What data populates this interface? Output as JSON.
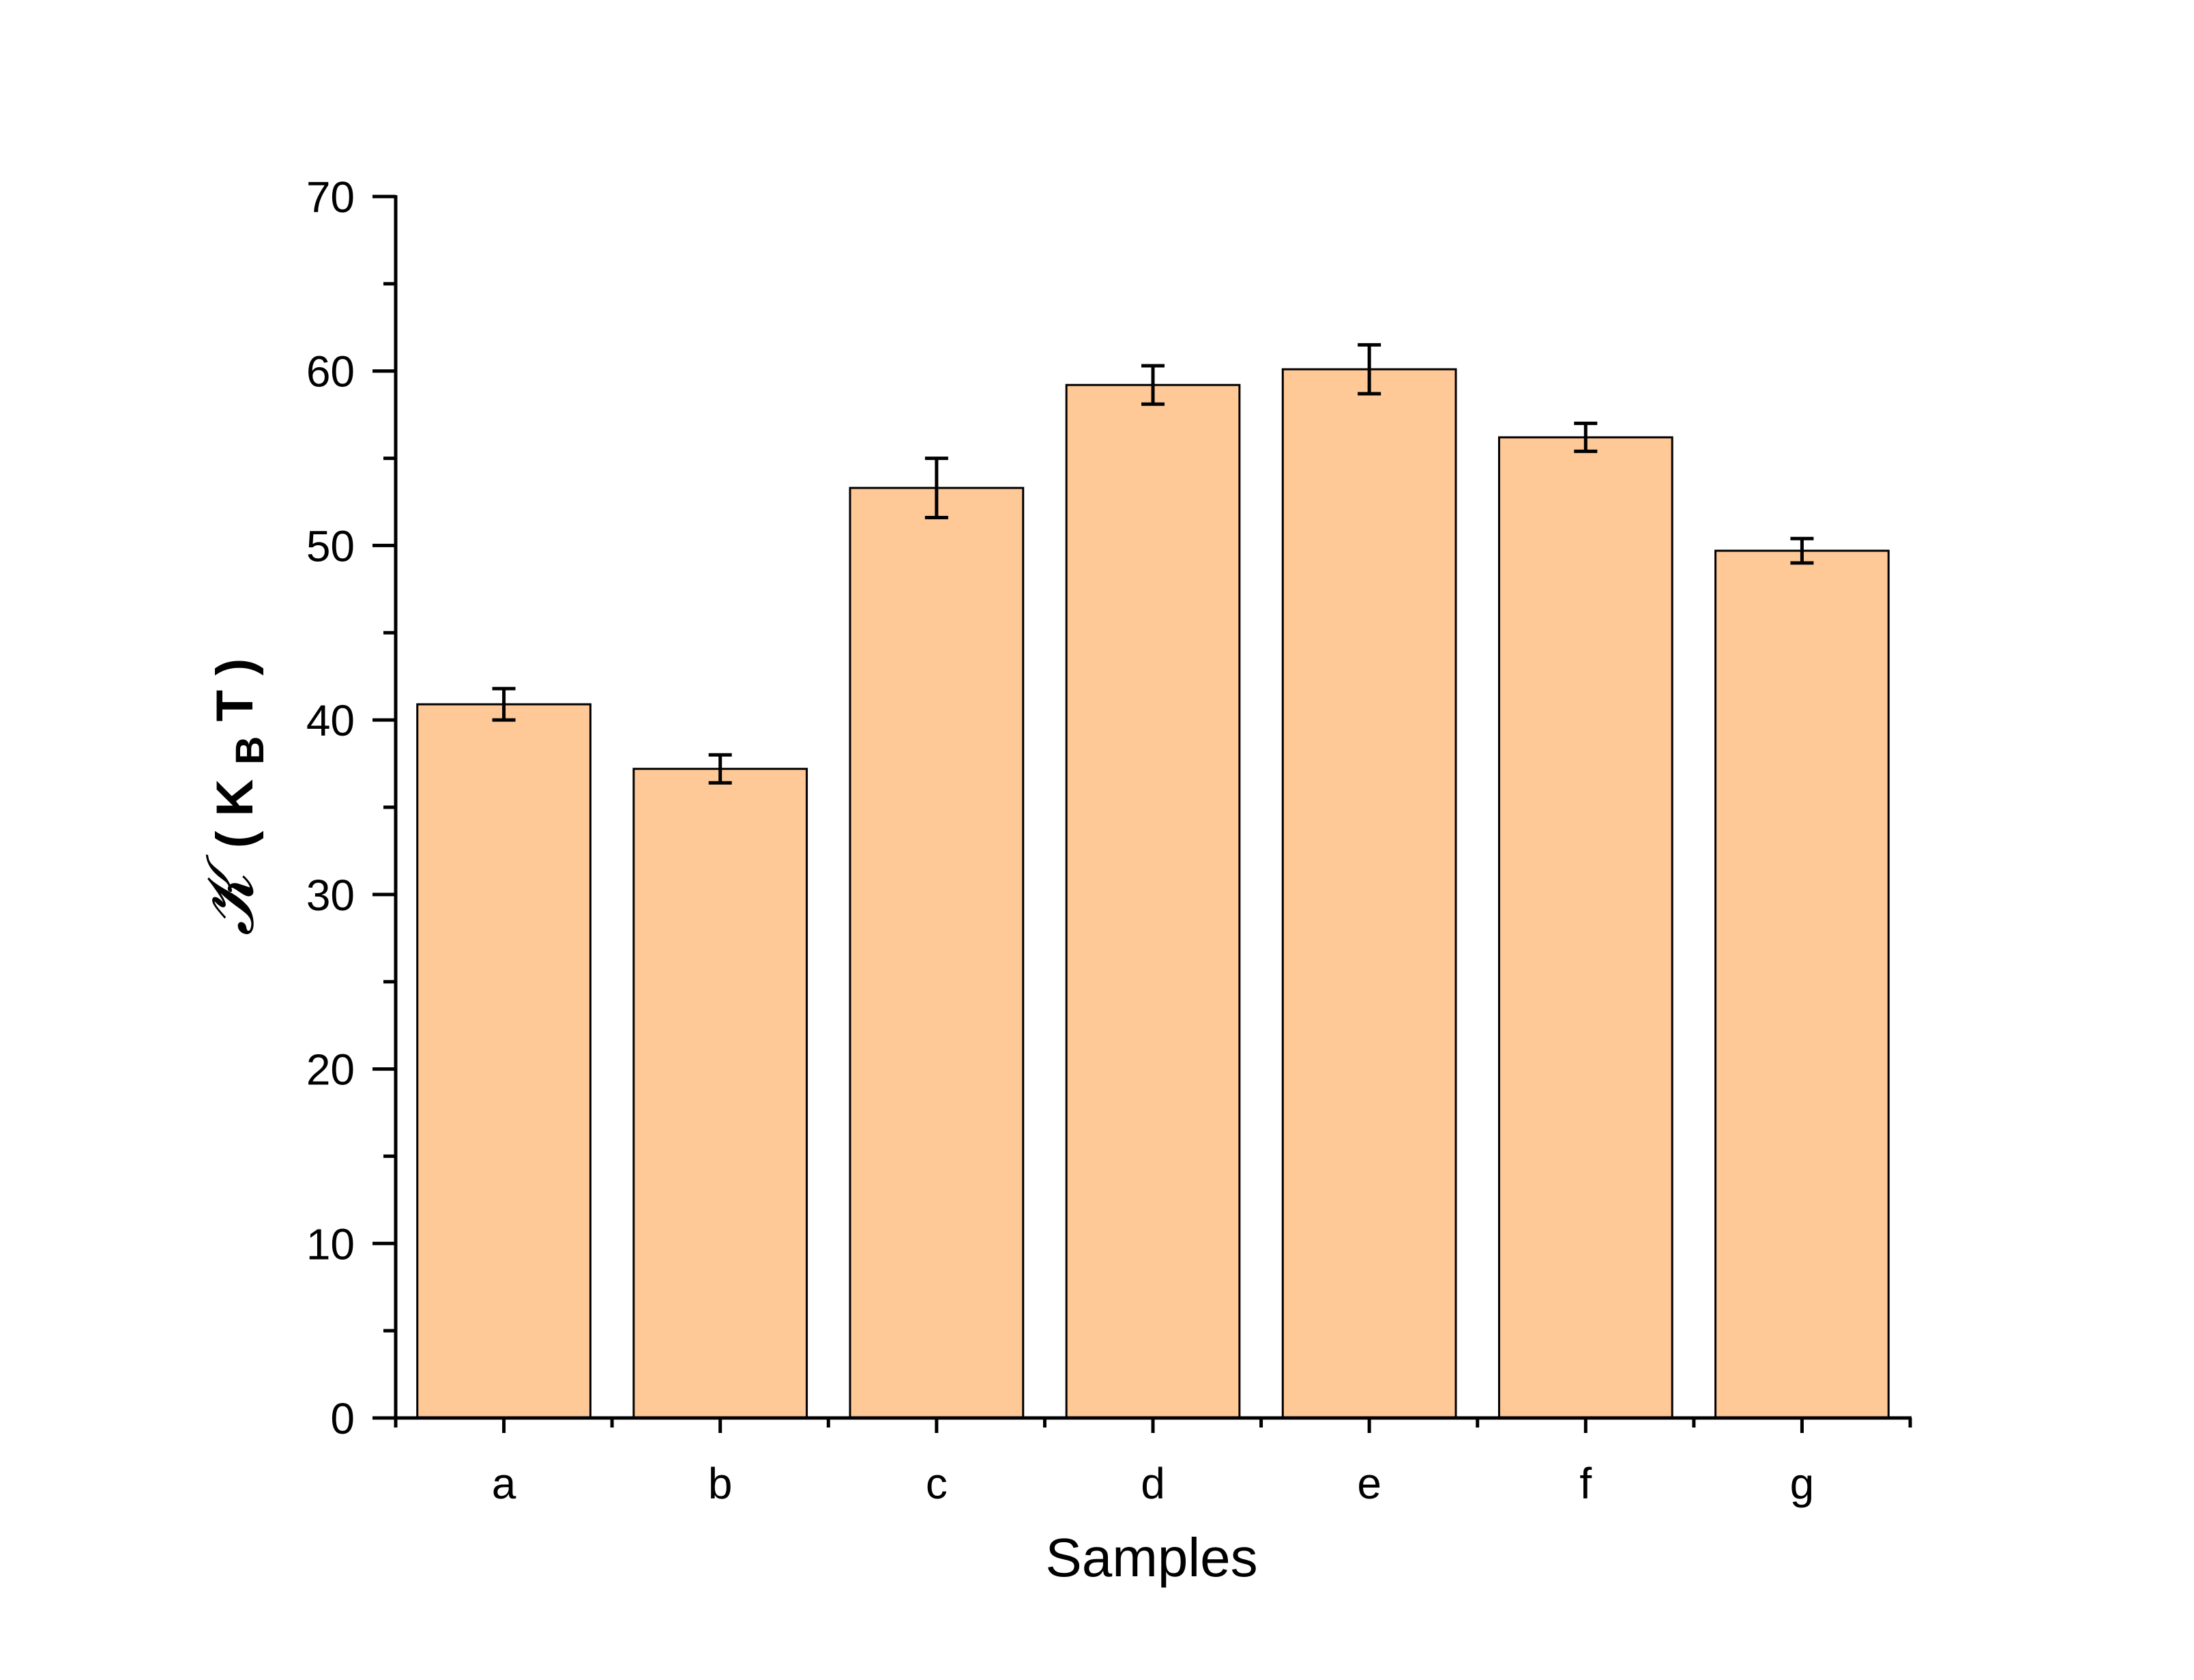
{
  "chart_data": {
    "type": "bar",
    "categories": [
      "a",
      "b",
      "c",
      "d",
      "e",
      "f",
      "g"
    ],
    "values": [
      40.9,
      37.2,
      53.3,
      59.2,
      60.1,
      56.2,
      49.7
    ],
    "errors": [
      0.9,
      0.8,
      1.7,
      1.1,
      1.4,
      0.8,
      0.7
    ],
    "xlabel": "Samples",
    "ylabel": {
      "symbol": "𝓚",
      "open": "(",
      "unit_main": "K",
      "unit_sub": "B",
      "unit_tail": "T",
      "close": ")"
    },
    "ylim": [
      0,
      70
    ],
    "yticks": [
      0,
      10,
      20,
      30,
      40,
      50,
      60,
      70
    ],
    "grid": false,
    "colors": {
      "bar_fill": "#FFC897",
      "bar_stroke": "#000000",
      "error_bar": "#000000",
      "axis": "#000000"
    }
  }
}
